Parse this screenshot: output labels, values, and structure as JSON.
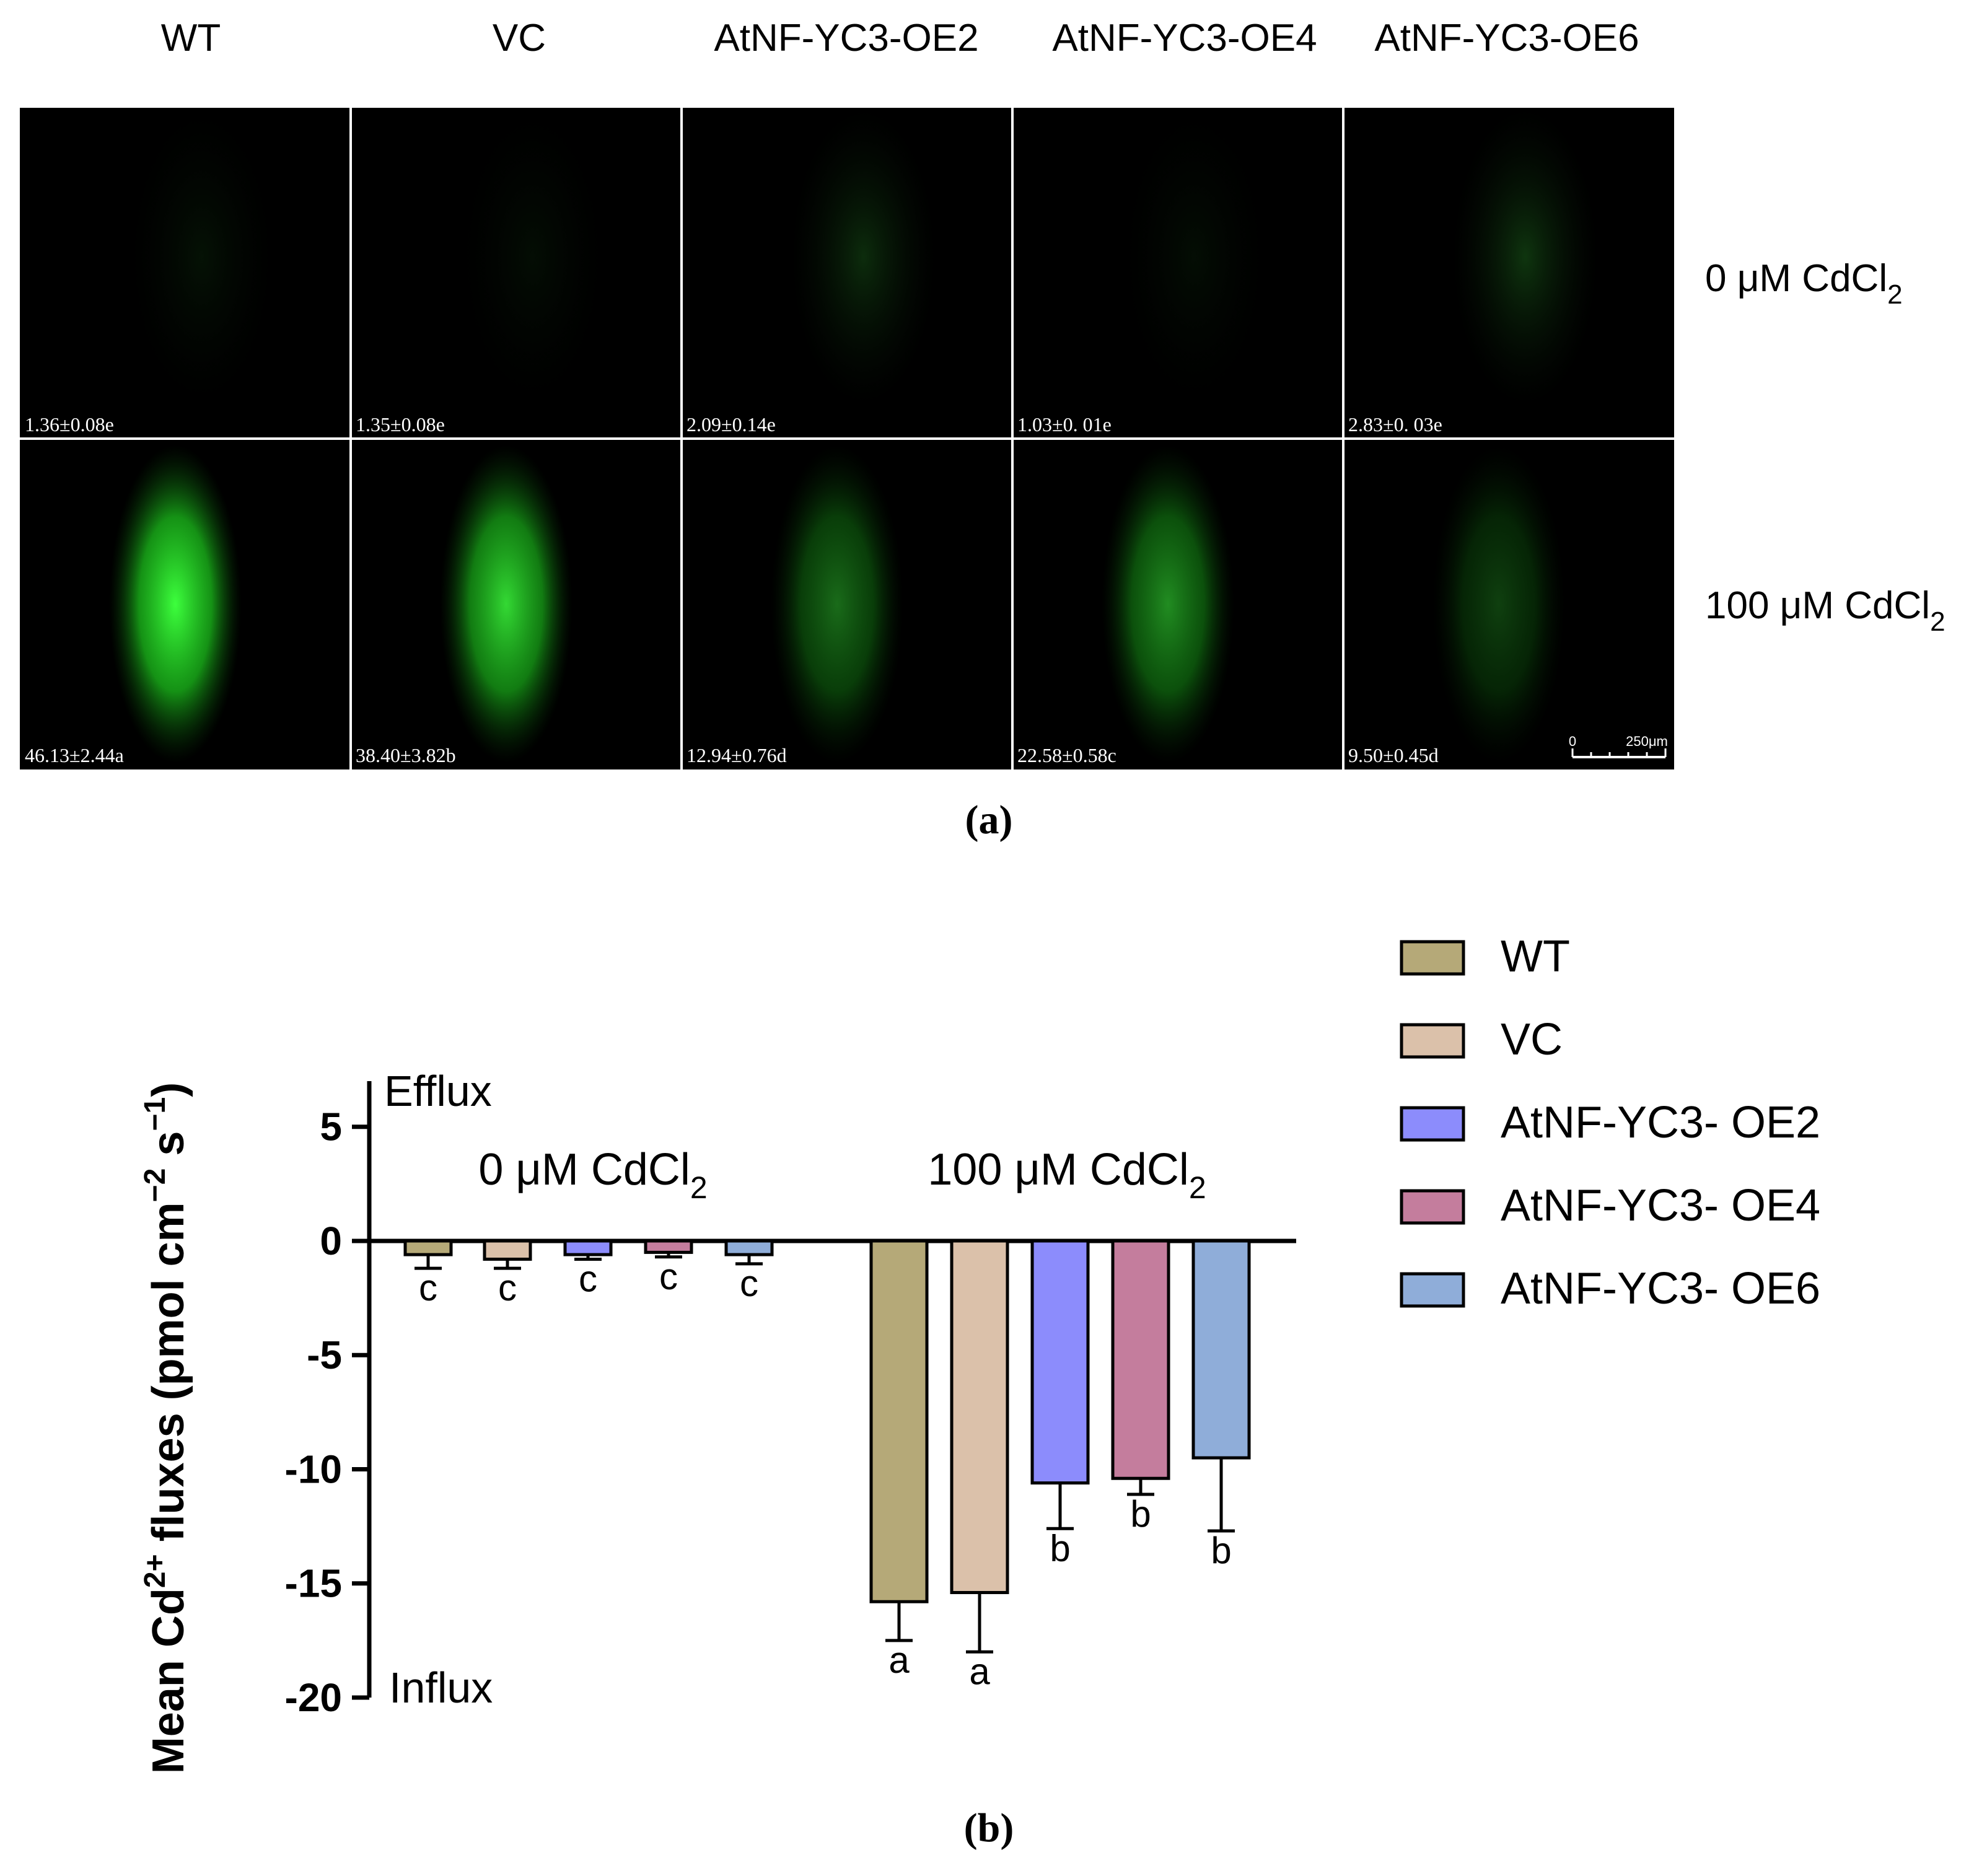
{
  "panel_a": {
    "columns": [
      "WT",
      "VC",
      "AtNF-YC3-OE2",
      "AtNF-YC3-OE4",
      "AtNF-YC3-OE6"
    ],
    "rows": [
      {
        "label_main": "0 μM CdCl",
        "label_sub": "2",
        "fluorescence": [
          0.04,
          0.03,
          0.1,
          0.03,
          0.12
        ]
      },
      {
        "label_main": "100 μM CdCl",
        "label_sub": "2",
        "fluorescence": [
          1.0,
          0.85,
          0.42,
          0.55,
          0.25
        ]
      }
    ],
    "values": [
      [
        "1.36±0.08e",
        "1.35±0.08e",
        "2.09±0.14e",
        "1.03±0. 01e",
        "2.83±0. 03e"
      ],
      [
        "46.13±2.44a",
        "38.40±3.82b",
        "12.94±0.76d",
        "22.58±0.58c",
        "9.50±0.45d"
      ]
    ],
    "scalebar": {
      "zero": "0",
      "length": "250μm"
    },
    "caption": "(a)"
  },
  "panel_b": {
    "caption": "(b)"
  },
  "chart_data": {
    "type": "bar",
    "groups": [
      {
        "label_main": "0 μM CdCl",
        "label_sub": "2"
      },
      {
        "label_main": "100 μM CdCl",
        "label_sub": "2"
      }
    ],
    "series": [
      {
        "name": "WT",
        "color": "#b5a978",
        "values": [
          -0.6,
          -15.8
        ],
        "errors": [
          0.6,
          1.7
        ],
        "letters": [
          "c",
          "a"
        ]
      },
      {
        "name": "VC",
        "color": "#dbc1aa",
        "values": [
          -0.8,
          -15.4
        ],
        "errors": [
          0.4,
          2.6
        ],
        "letters": [
          "c",
          "a"
        ]
      },
      {
        "name": "AtNF-YC3- OE2",
        "color": "#8c8cfc",
        "values": [
          -0.6,
          -10.6
        ],
        "errors": [
          0.2,
          2.0
        ],
        "letters": [
          "c",
          "b"
        ]
      },
      {
        "name": "AtNF-YC3- OE4",
        "color": "#c47d9d",
        "values": [
          -0.5,
          -10.4
        ],
        "errors": [
          0.2,
          0.7
        ],
        "letters": [
          "c",
          "b"
        ]
      },
      {
        "name": "AtNF-YC3- OE6",
        "color": "#8fadd9",
        "values": [
          -0.6,
          -9.5
        ],
        "errors": [
          0.4,
          3.2
        ],
        "letters": [
          "c",
          "b"
        ]
      }
    ],
    "ylim": [
      -20,
      7
    ],
    "yticks": [
      5,
      0,
      -5,
      -10,
      -15,
      -20
    ],
    "ytick_labels": [
      "5",
      "0",
      "-5",
      "-10",
      "-15",
      "-20"
    ],
    "ylabel": {
      "prefix": "Mean Cd",
      "sup1": "2+",
      "middle": " fluxes (pmol cm",
      "sup2": "−2",
      "s": " s",
      "sup3": "−1",
      "suffix": ")"
    },
    "efflux_label": "Efflux",
    "influx_label": "Influx",
    "legend_position": "right"
  }
}
